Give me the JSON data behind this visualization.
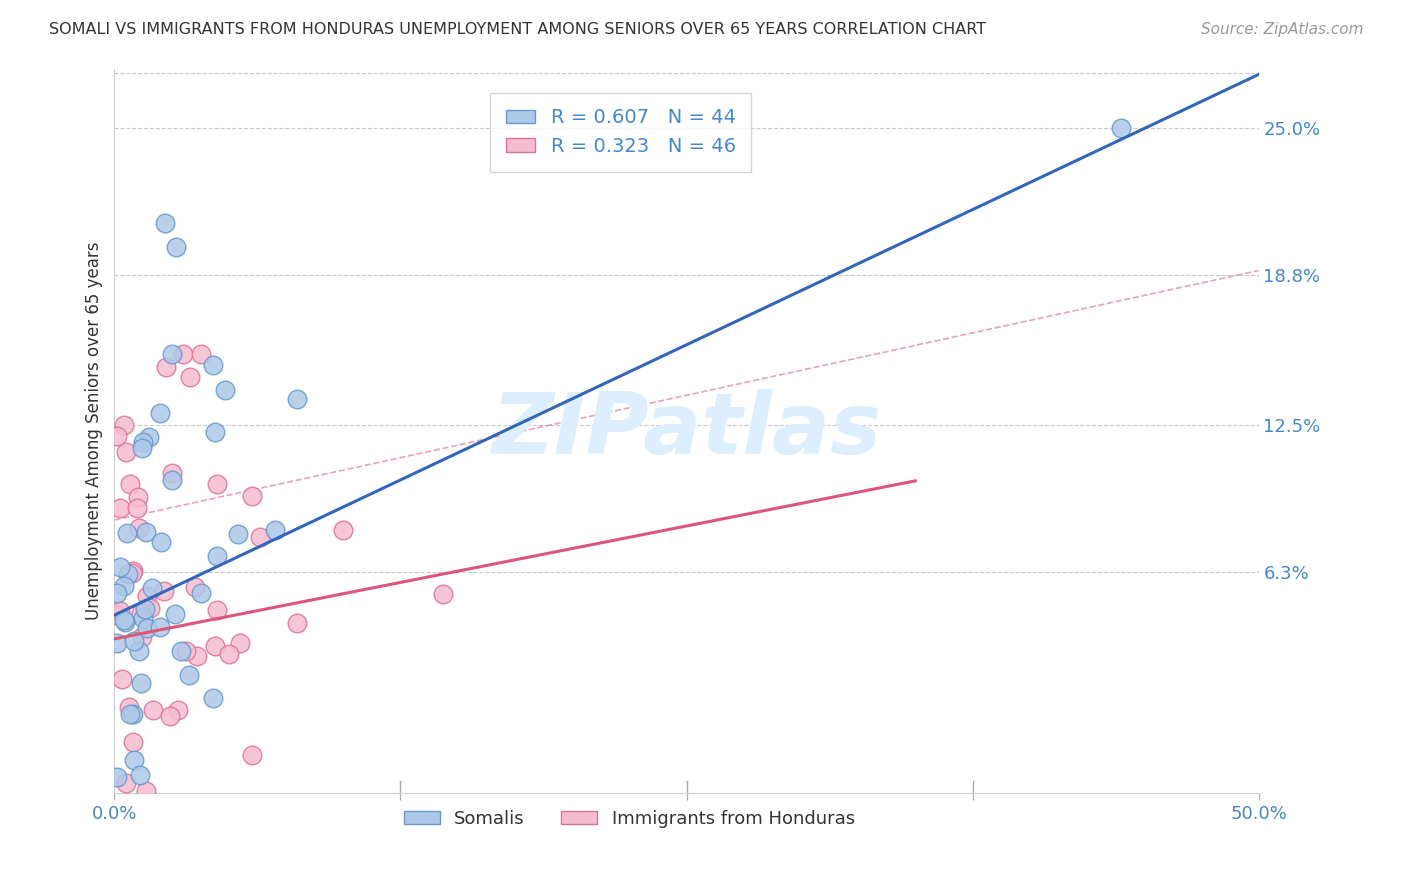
{
  "title": "SOMALI VS IMMIGRANTS FROM HONDURAS UNEMPLOYMENT AMONG SENIORS OVER 65 YEARS CORRELATION CHART",
  "source": "Source: ZipAtlas.com",
  "ylabel": "Unemployment Among Seniors over 65 years",
  "xlim": [
    0.0,
    0.5
  ],
  "ylim": [
    -0.03,
    0.275
  ],
  "xtick_positions": [
    0.0,
    0.125,
    0.25,
    0.375,
    0.5
  ],
  "xticklabels": [
    "0.0%",
    "",
    "",
    "",
    "50.0%"
  ],
  "yticks_right": [
    0.063,
    0.125,
    0.188,
    0.25
  ],
  "ytick_labels_right": [
    "6.3%",
    "12.5%",
    "18.8%",
    "25.0%"
  ],
  "somali_color": "#adc8e8",
  "honduras_color": "#f5bcd0",
  "somali_edge": "#6699cc",
  "honduras_edge": "#e07090",
  "somali_line_color": "#3366bb",
  "honduras_line_color": "#dd5577",
  "legend_somali_label": "R = 0.607   N = 44",
  "legend_honduras_label": "R = 0.323   N = 46",
  "watermark": "ZIPatlas",
  "watermark_color": "#ddeeff",
  "grid_color": "#bbbbbb",
  "axis_color": "#4488cc",
  "somali_intercept": 0.045,
  "somali_slope": 0.455,
  "honduras_intercept": 0.035,
  "honduras_slope": 0.19,
  "dash_intercept": 0.085,
  "dash_slope": 0.21
}
